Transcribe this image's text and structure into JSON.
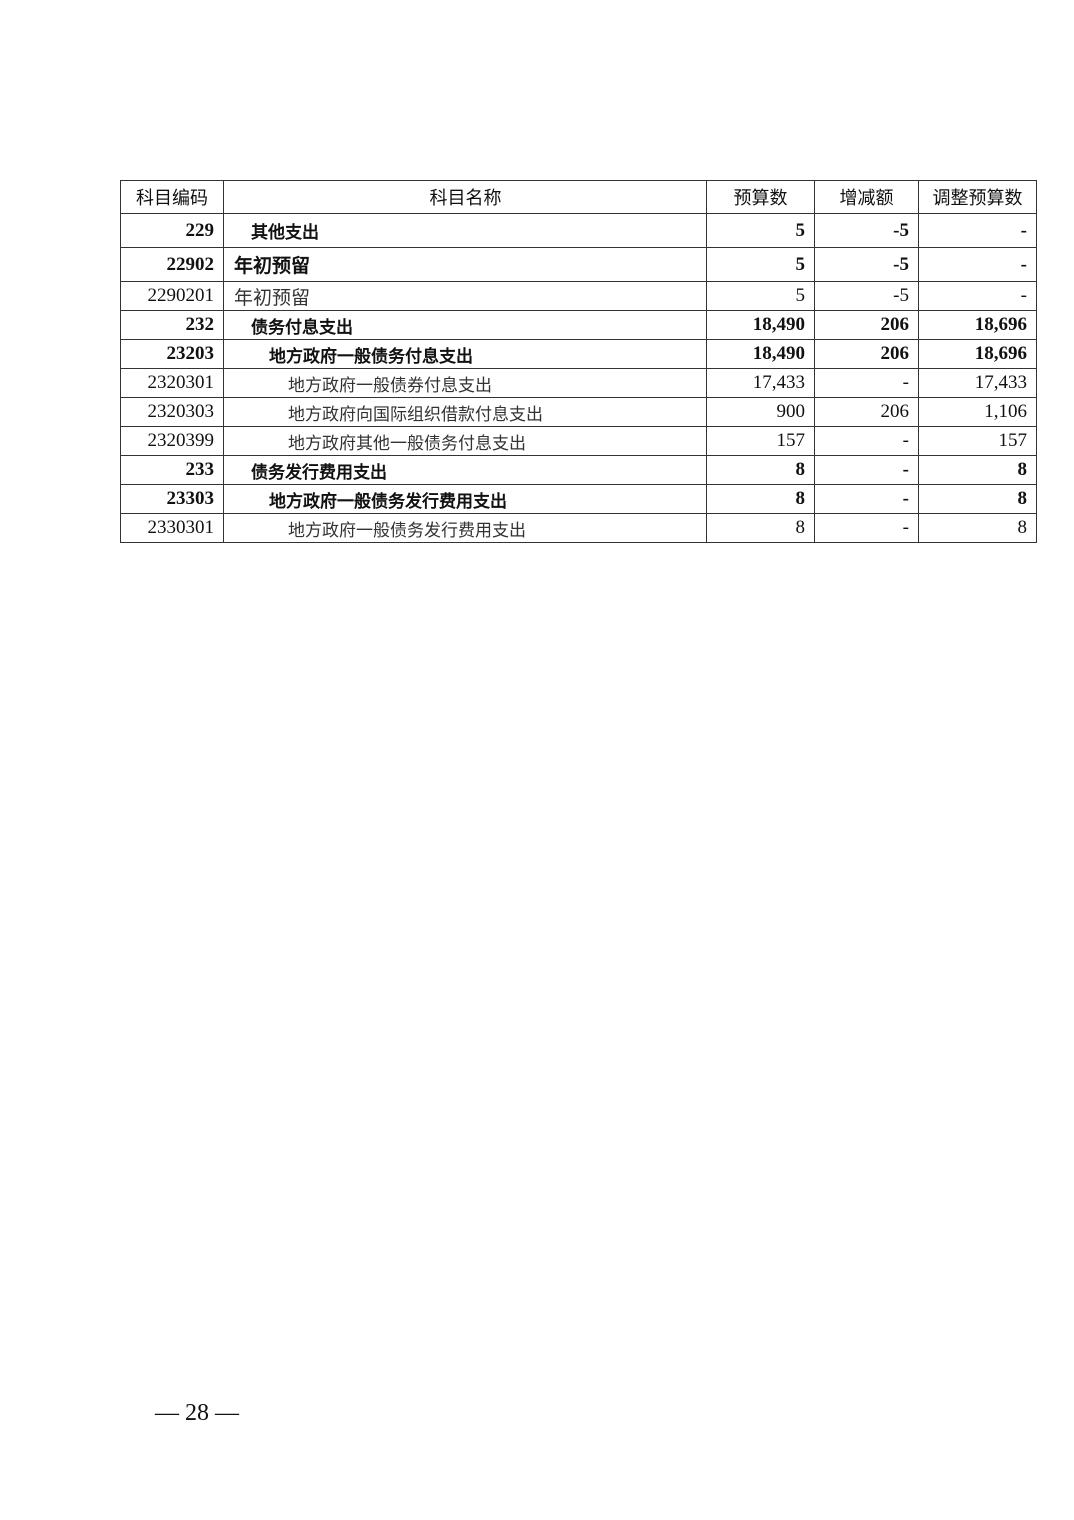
{
  "table": {
    "headers": [
      "科目编码",
      "科目名称",
      "预算数",
      "增减额",
      "调整预算数"
    ],
    "rows": [
      {
        "code": "229",
        "name": "其他支出",
        "budget": "5",
        "change": "-5",
        "adjusted": "-"
      },
      {
        "code": "22902",
        "name": "年初预留",
        "budget": "5",
        "change": "-5",
        "adjusted": "-"
      },
      {
        "code": "2290201",
        "name": "年初预留",
        "budget": "5",
        "change": "-5",
        "adjusted": "-"
      },
      {
        "code": "232",
        "name": "债务付息支出",
        "budget": "18,490",
        "change": "206",
        "adjusted": "18,696"
      },
      {
        "code": "23203",
        "name": "地方政府一般债务付息支出",
        "budget": "18,490",
        "change": "206",
        "adjusted": "18,696"
      },
      {
        "code": "2320301",
        "name": "地方政府一般债券付息支出",
        "budget": "17,433",
        "change": "-",
        "adjusted": "17,433"
      },
      {
        "code": "2320303",
        "name": "地方政府向国际组织借款付息支出",
        "budget": "900",
        "change": "206",
        "adjusted": "1,106"
      },
      {
        "code": "2320399",
        "name": "地方政府其他一般债务付息支出",
        "budget": "157",
        "change": "-",
        "adjusted": "157"
      },
      {
        "code": "233",
        "name": "债务发行费用支出",
        "budget": "8",
        "change": "-",
        "adjusted": "8"
      },
      {
        "code": "23303",
        "name": "地方政府一般债务发行费用支出",
        "budget": "8",
        "change": "-",
        "adjusted": "8"
      },
      {
        "code": "2330301",
        "name": "地方政府一般债务发行费用支出",
        "budget": "8",
        "change": "-",
        "adjusted": "8"
      }
    ]
  },
  "page_number": "— 28 —"
}
